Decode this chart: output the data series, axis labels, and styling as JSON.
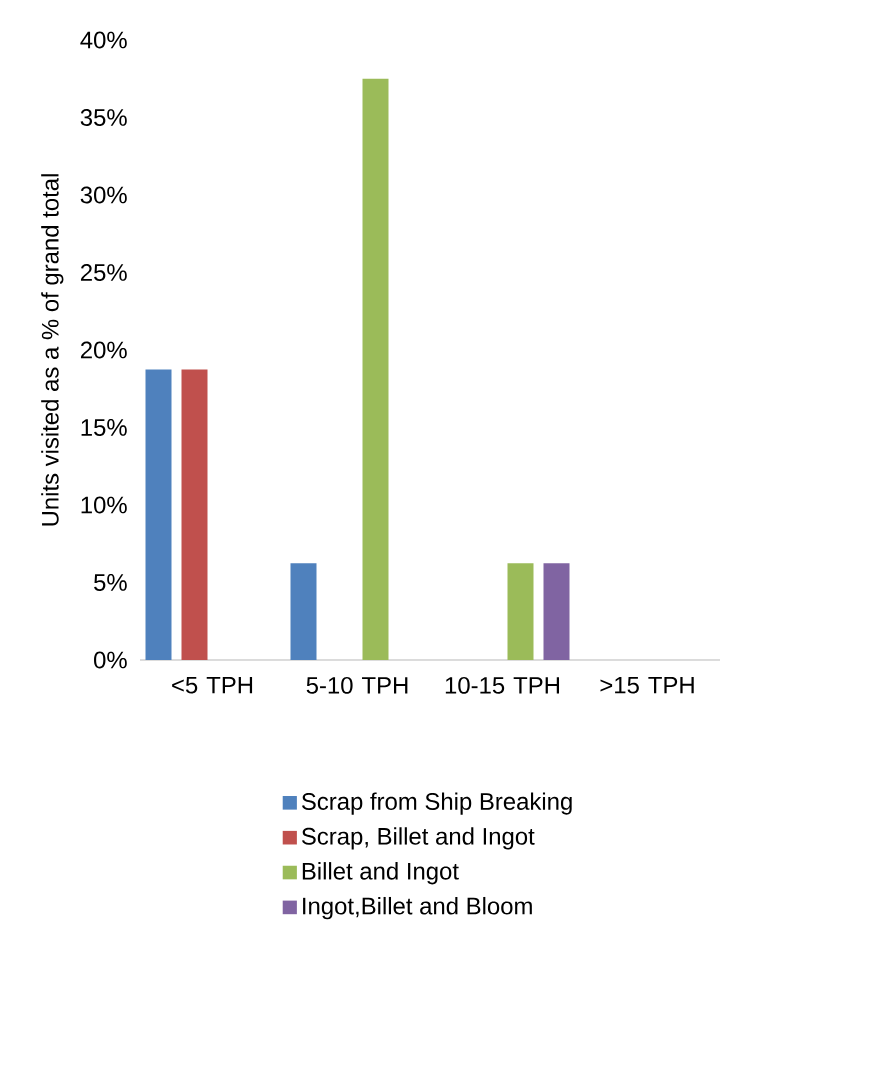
{
  "chart_data": {
    "type": "bar",
    "ylabel": "Units visited as a % of grand total",
    "categories": [
      "<5 TPH",
      "5-10 TPH",
      "10-15 TPH",
      ">15 TPH"
    ],
    "series": [
      {
        "name": "Scrap from Ship Breaking",
        "color": "#4f81bd",
        "values": [
          18.75,
          6.25,
          0,
          0
        ]
      },
      {
        "name": "Scrap, Billet and Ingot",
        "color": "#c0504d",
        "values": [
          18.75,
          0,
          0,
          0
        ]
      },
      {
        "name": "Billet and Ingot",
        "color": "#9bbb59",
        "values": [
          0,
          37.5,
          6.25,
          0
        ]
      },
      {
        "name": "Ingot,Billet and Bloom",
        "color": "#8064a2",
        "values": [
          0,
          0,
          6.25,
          0
        ]
      }
    ],
    "ylim": [
      0,
      40
    ],
    "yticks": [
      {
        "value": 0,
        "label": "0%"
      },
      {
        "value": 5,
        "label": "5%"
      },
      {
        "value": 10,
        "label": "10%"
      },
      {
        "value": 15,
        "label": "15%"
      },
      {
        "value": 20,
        "label": "20%"
      },
      {
        "value": 25,
        "label": "25%"
      },
      {
        "value": 30,
        "label": "30%"
      },
      {
        "value": 35,
        "label": "35%"
      },
      {
        "value": 40,
        "label": "40%"
      }
    ],
    "grid": false,
    "legend": "bottom"
  }
}
